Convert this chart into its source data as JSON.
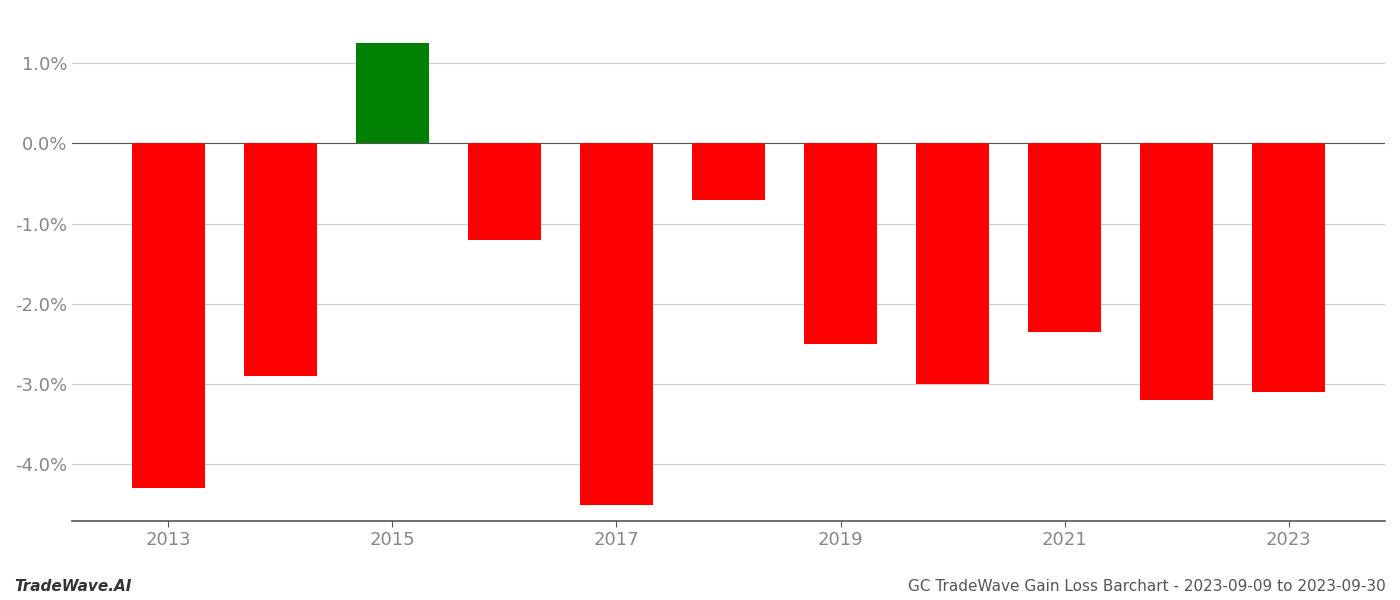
{
  "years": [
    2013,
    2014,
    2015,
    2016,
    2017,
    2018,
    2019,
    2020,
    2021,
    2022,
    2023
  ],
  "values": [
    -0.043,
    -0.029,
    0.0125,
    -0.012,
    -0.045,
    -0.007,
    -0.025,
    -0.03,
    -0.0235,
    -0.032,
    -0.031
  ],
  "bar_colors": [
    "#ff0000",
    "#ff0000",
    "#008000",
    "#ff0000",
    "#ff0000",
    "#ff0000",
    "#ff0000",
    "#ff0000",
    "#ff0000",
    "#ff0000",
    "#ff0000"
  ],
  "ylim": [
    -0.047,
    0.016
  ],
  "ytick_values": [
    -0.04,
    -0.03,
    -0.02,
    -0.01,
    0.0,
    0.01
  ],
  "ytick_labels": [
    "-4.0%",
    "-3.0%",
    "-2.0%",
    "-1.0%",
    "0.0%",
    "1.0%"
  ],
  "xtick_positions": [
    2013,
    2015,
    2017,
    2019,
    2021,
    2023
  ],
  "background_color": "#ffffff",
  "grid_color": "#cccccc",
  "tick_color": "#888888",
  "bar_width": 0.65,
  "footer_left": "TradeWave.AI",
  "footer_right": "GC TradeWave Gain Loss Barchart - 2023-09-09 to 2023-09-30"
}
